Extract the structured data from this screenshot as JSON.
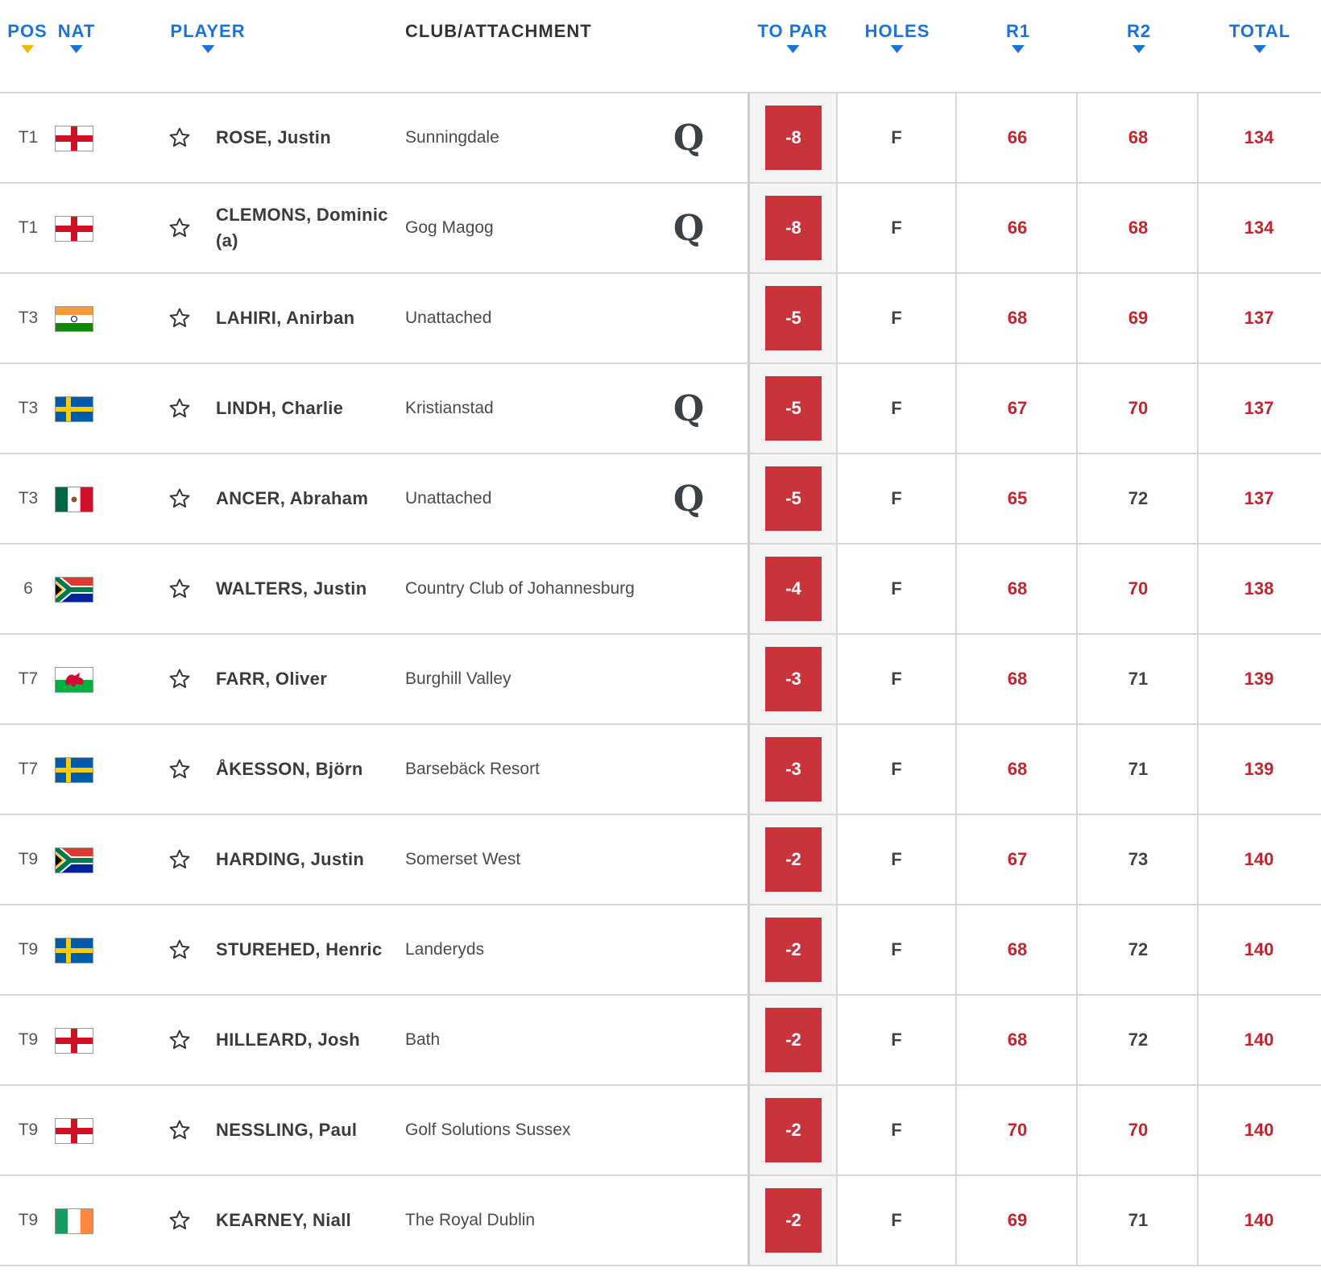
{
  "headers": {
    "pos": "POS",
    "nat": "NAT",
    "player": "PLAYER",
    "club": "CLUB/ATTACHMENT",
    "to_par": "TO PAR",
    "holes": "HOLES",
    "r1": "R1",
    "r2": "R2",
    "total": "TOTAL"
  },
  "colors": {
    "accent": "#1a73d9",
    "sort_active": "#f5b400",
    "under_par": "#c8333c",
    "score_red": "#c0262f",
    "score_even": "#444444"
  },
  "rows": [
    {
      "pos": "T1",
      "nation": "england",
      "player": "ROSE, Justin",
      "club": "Sunningdale",
      "q": "Q",
      "to_par": "-8",
      "holes": "F",
      "r1": "66",
      "r2": "68",
      "total": "134",
      "r1_red": true,
      "r2_red": true
    },
    {
      "pos": "T1",
      "nation": "england",
      "player": "CLEMONS, Dominic (a)",
      "club": "Gog Magog",
      "q": "Q",
      "to_par": "-8",
      "holes": "F",
      "r1": "66",
      "r2": "68",
      "total": "134",
      "r1_red": true,
      "r2_red": true
    },
    {
      "pos": "T3",
      "nation": "india",
      "player": "LAHIRI, Anirban",
      "club": "Unattached",
      "q": "",
      "to_par": "-5",
      "holes": "F",
      "r1": "68",
      "r2": "69",
      "total": "137",
      "r1_red": true,
      "r2_red": true
    },
    {
      "pos": "T3",
      "nation": "sweden",
      "player": "LINDH, Charlie",
      "club": "Kristianstad",
      "q": "Q",
      "to_par": "-5",
      "holes": "F",
      "r1": "67",
      "r2": "70",
      "total": "137",
      "r1_red": true,
      "r2_red": true
    },
    {
      "pos": "T3",
      "nation": "mexico",
      "player": "ANCER, Abraham",
      "club": "Unattached",
      "q": "Q",
      "to_par": "-5",
      "holes": "F",
      "r1": "65",
      "r2": "72",
      "total": "137",
      "r1_red": true,
      "r2_red": false
    },
    {
      "pos": "6",
      "nation": "south-africa",
      "player": "WALTERS, Justin",
      "club": "Country Club of Johannesburg",
      "q": "",
      "to_par": "-4",
      "holes": "F",
      "r1": "68",
      "r2": "70",
      "total": "138",
      "r1_red": true,
      "r2_red": true
    },
    {
      "pos": "T7",
      "nation": "wales",
      "player": "FARR, Oliver",
      "club": "Burghill Valley",
      "q": "",
      "to_par": "-3",
      "holes": "F",
      "r1": "68",
      "r2": "71",
      "total": "139",
      "r1_red": true,
      "r2_red": false
    },
    {
      "pos": "T7",
      "nation": "sweden",
      "player": "ÅKESSON, Björn",
      "club": "Barsebäck Resort",
      "q": "",
      "to_par": "-3",
      "holes": "F",
      "r1": "68",
      "r2": "71",
      "total": "139",
      "r1_red": true,
      "r2_red": false
    },
    {
      "pos": "T9",
      "nation": "south-africa",
      "player": "HARDING, Justin",
      "club": "Somerset West",
      "q": "",
      "to_par": "-2",
      "holes": "F",
      "r1": "67",
      "r2": "73",
      "total": "140",
      "r1_red": true,
      "r2_red": false
    },
    {
      "pos": "T9",
      "nation": "sweden",
      "player": "STUREHED, Henric",
      "club": "Landeryds",
      "q": "",
      "to_par": "-2",
      "holes": "F",
      "r1": "68",
      "r2": "72",
      "total": "140",
      "r1_red": true,
      "r2_red": false
    },
    {
      "pos": "T9",
      "nation": "england",
      "player": "HILLEARD, Josh",
      "club": "Bath",
      "q": "",
      "to_par": "-2",
      "holes": "F",
      "r1": "68",
      "r2": "72",
      "total": "140",
      "r1_red": true,
      "r2_red": false
    },
    {
      "pos": "T9",
      "nation": "england",
      "player": "NESSLING, Paul",
      "club": "Golf Solutions Sussex",
      "q": "",
      "to_par": "-2",
      "holes": "F",
      "r1": "70",
      "r2": "70",
      "total": "140",
      "r1_red": true,
      "r2_red": true
    },
    {
      "pos": "T9",
      "nation": "ireland",
      "player": "KEARNEY, Niall",
      "club": "The Royal Dublin",
      "q": "",
      "to_par": "-2",
      "holes": "F",
      "r1": "69",
      "r2": "71",
      "total": "140",
      "r1_red": true,
      "r2_red": false
    }
  ]
}
